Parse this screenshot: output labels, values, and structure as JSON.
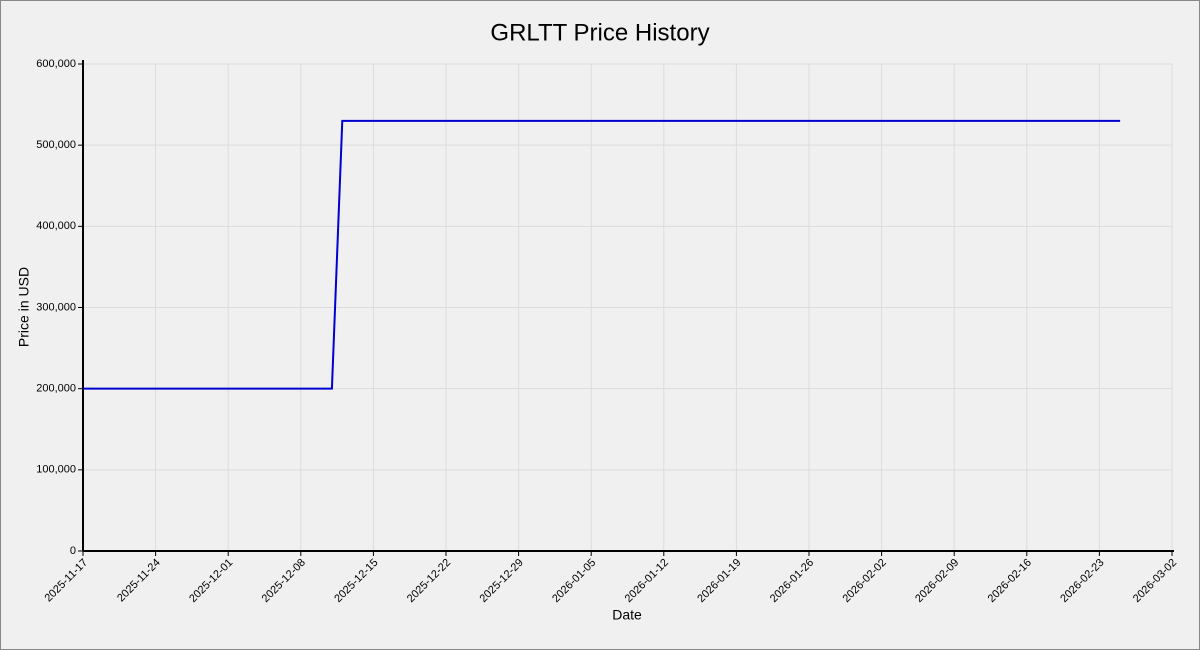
{
  "chart_data": {
    "type": "line",
    "title": "GRLTT Price History",
    "x_label": "Date",
    "y_label": "Price in USD",
    "x": [
      "2025-11-17",
      "2025-12-11",
      "2025-12-12",
      "2026-02-25"
    ],
    "series": [
      {
        "name": "GRLTT",
        "color": "#0000d0",
        "values": [
          200000,
          200000,
          530000,
          530000
        ]
      }
    ],
    "xlim": [
      "2025-11-17",
      "2026-03-02"
    ],
    "xticks": [
      "2025-11-17",
      "2025-11-24",
      "2025-12-01",
      "2025-12-08",
      "2025-12-15",
      "2025-12-22",
      "2025-12-29",
      "2026-01-05",
      "2026-01-12",
      "2026-01-19",
      "2026-01-26",
      "2026-02-02",
      "2026-02-09",
      "2026-02-16",
      "2026-02-23",
      "2026-03-02"
    ],
    "ylim": [
      0,
      600000
    ],
    "yticks": [
      0,
      {
        "value": 100000,
        "label": "100,000"
      },
      {
        "value": 200000,
        "label": "200,000"
      },
      {
        "value": 300000,
        "label": "300,000"
      },
      {
        "value": 400000,
        "label": "400,000"
      },
      {
        "value": 500000,
        "label": "500,000"
      },
      {
        "value": 600000,
        "label": "600,000"
      }
    ],
    "grid": true
  }
}
